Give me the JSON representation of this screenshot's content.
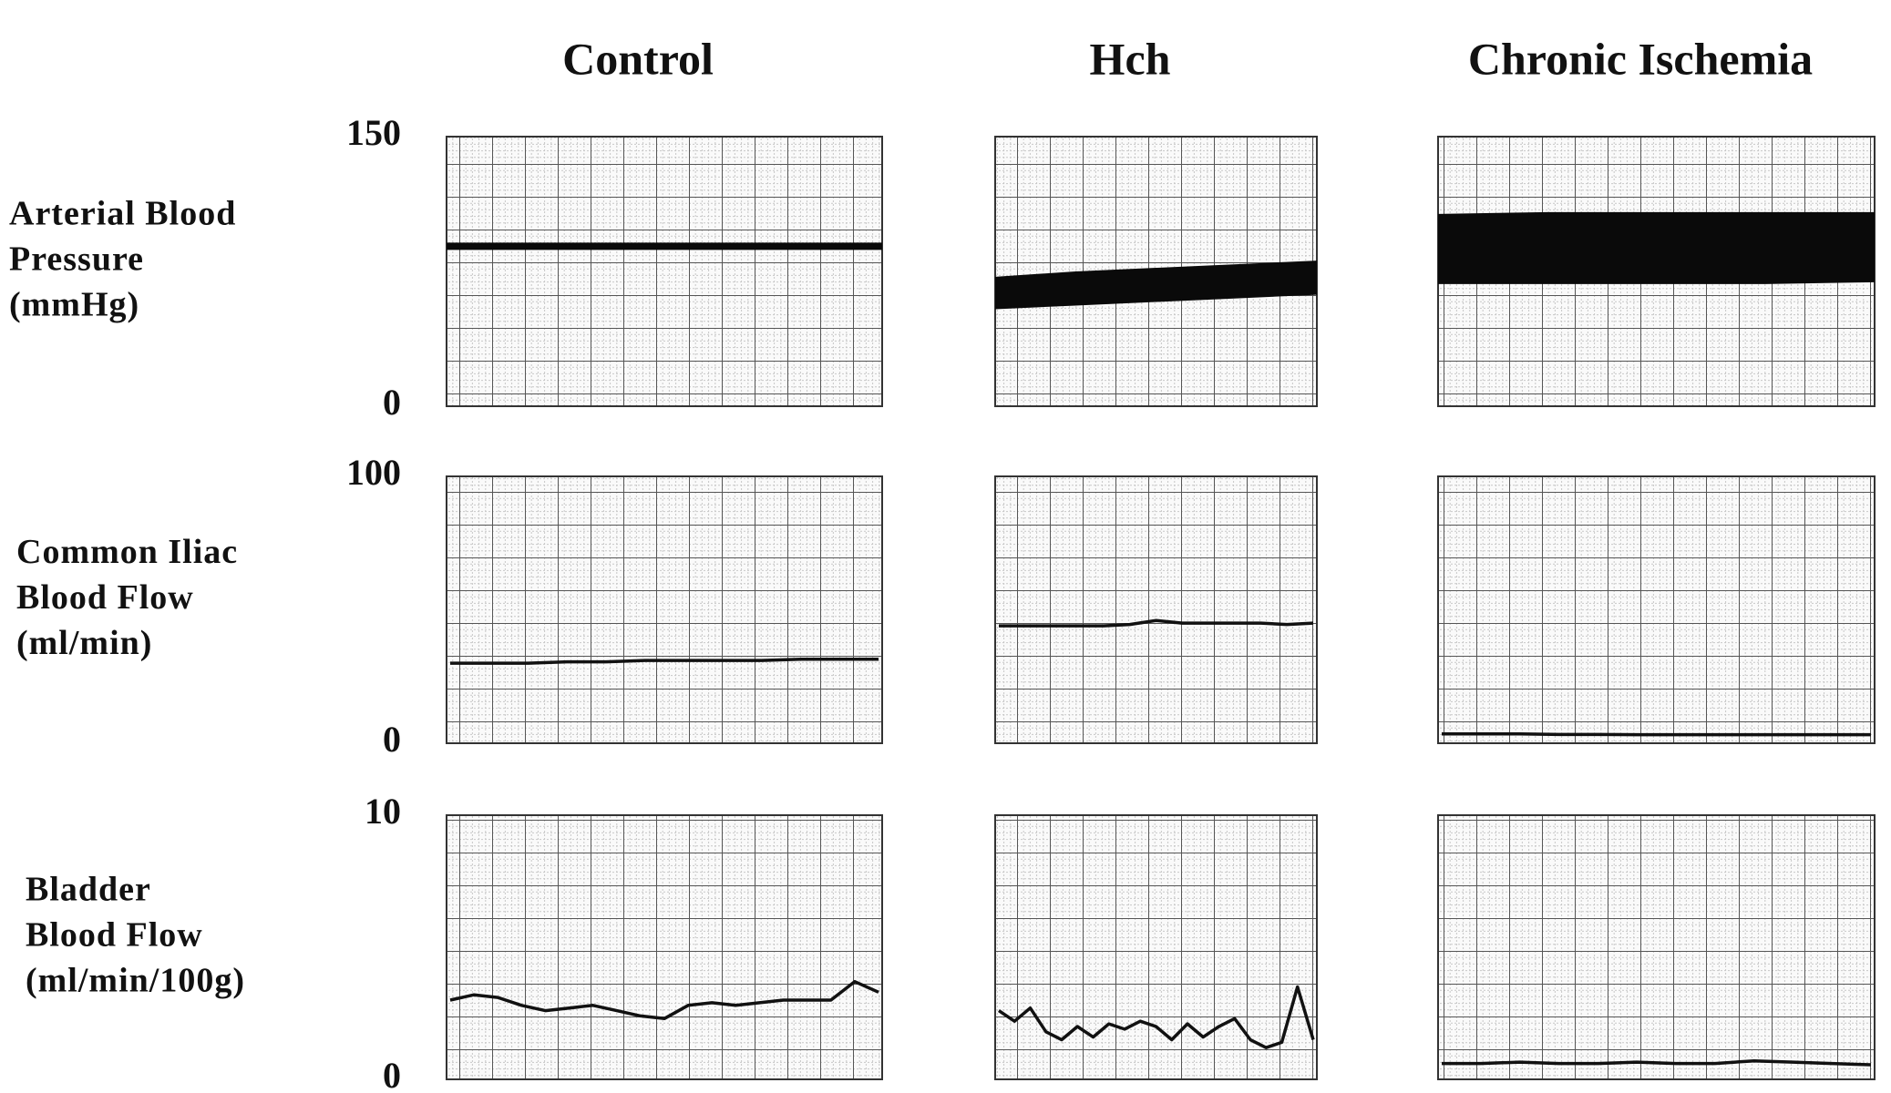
{
  "chart_data": {
    "type": "panel-grid",
    "columns": [
      "Control",
      "Hch",
      "Chronic Ischemia"
    ],
    "rows": [
      {
        "label": [
          "Arterial Blood",
          "Pressure",
          "(mmHg)"
        ],
        "ylim": [
          0,
          150
        ],
        "yticks": [
          0,
          150
        ],
        "panels": [
          {
            "type": "band",
            "low": [
              87,
              87,
              87,
              87,
              87
            ],
            "high": [
              91,
              91,
              91,
              91,
              91
            ]
          },
          {
            "type": "band",
            "low": [
              54,
              56,
              58,
              60,
              62
            ],
            "high": [
              72,
              75,
              77,
              79,
              81
            ]
          },
          {
            "type": "band",
            "low": [
              68,
              68,
              68,
              68,
              69
            ],
            "high": [
              107,
              108,
              108,
              108,
              108
            ]
          }
        ]
      },
      {
        "label": [
          "Common Iliac",
          "Blood Flow",
          "(ml/min)"
        ],
        "ylim": [
          0,
          100
        ],
        "yticks": [
          0,
          100
        ],
        "panels": [
          {
            "type": "line",
            "values": [
              30,
              30,
              30,
              30.5,
              30.5,
              31,
              31,
              31,
              31,
              31.5,
              31.5,
              31.5
            ]
          },
          {
            "type": "line",
            "values": [
              44,
              44,
              44,
              44,
              44,
              44.5,
              46,
              45,
              45,
              45,
              45,
              44.5,
              45
            ]
          },
          {
            "type": "line",
            "values": [
              3.5,
              3.5,
              3.5,
              3.3,
              3.3,
              3.2,
              3.2,
              3.2,
              3.2,
              3.2,
              3.2,
              3.2
            ]
          }
        ]
      },
      {
        "label": [
          "Bladder",
          "Blood Flow",
          "(ml/min/100g)"
        ],
        "ylim": [
          0,
          10
        ],
        "yticks": [
          0,
          10
        ],
        "panels": [
          {
            "type": "line",
            "values": [
              3.0,
              3.2,
              3.1,
              2.8,
              2.6,
              2.7,
              2.8,
              2.6,
              2.4,
              2.3,
              2.8,
              2.9,
              2.8,
              2.9,
              3.0,
              3.0,
              3.0,
              3.7,
              3.3
            ]
          },
          {
            "type": "line",
            "values": [
              2.6,
              2.2,
              2.7,
              1.8,
              1.5,
              2.0,
              1.6,
              2.1,
              1.9,
              2.2,
              2.0,
              1.5,
              2.1,
              1.6,
              2.0,
              2.3,
              1.5,
              1.2,
              1.4,
              3.5,
              1.5
            ]
          },
          {
            "type": "line",
            "values": [
              0.6,
              0.6,
              0.65,
              0.6,
              0.6,
              0.65,
              0.6,
              0.6,
              0.7,
              0.65,
              0.6,
              0.55
            ]
          }
        ]
      }
    ]
  }
}
